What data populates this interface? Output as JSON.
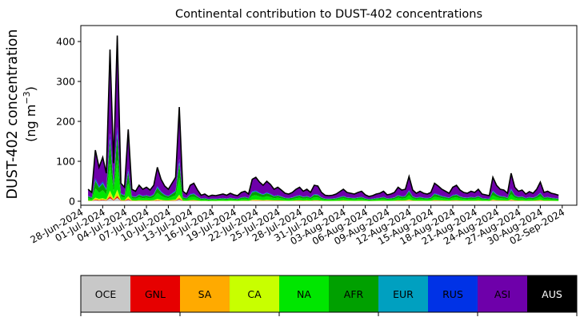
{
  "chart_data": {
    "type": "area",
    "title": "Continental contribution to DUST-402 concentrations",
    "ylabel_line1": "DUST-402 concentration",
    "ylabel_line2": "(ng m",
    "ylabel_unit_exp": "−3",
    "ylabel_close": ")",
    "xlabel": "",
    "ylim": [
      -10,
      440
    ],
    "xlim": [
      "2024-06-28",
      "2024-09-04"
    ],
    "y_ticks": [
      0,
      100,
      200,
      300,
      400
    ],
    "x_tick_labels": [
      "28-Jun-2024",
      "01-Jul-2024",
      "04-Jul-2024",
      "07-Jul-2024",
      "10-Jul-2024",
      "13-Jul-2024",
      "16-Jul-2024",
      "19-Jul-2024",
      "22-Jul-2024",
      "25-Jul-2024",
      "28-Jul-2024",
      "31-Jul-2024",
      "03-Aug-2024",
      "06-Aug-2024",
      "09-Aug-2024",
      "12-Aug-2024",
      "15-Aug-2024",
      "18-Aug-2024",
      "21-Aug-2024",
      "24-Aug-2024",
      "27-Aug-2024",
      "30-Aug-2024",
      "02-Sep-2024"
    ],
    "x_start_date": "2024-06-29",
    "x_step_hours": 12,
    "series_total": [
      30,
      22,
      128,
      85,
      110,
      70,
      380,
      95,
      415,
      45,
      35,
      180,
      30,
      25,
      40,
      30,
      35,
      28,
      40,
      85,
      55,
      38,
      30,
      45,
      60,
      236,
      25,
      18,
      40,
      45,
      28,
      15,
      18,
      12,
      15,
      14,
      16,
      18,
      15,
      20,
      16,
      14,
      22,
      25,
      18,
      55,
      60,
      48,
      40,
      50,
      42,
      30,
      35,
      28,
      20,
      18,
      22,
      30,
      35,
      25,
      30,
      22,
      40,
      38,
      22,
      15,
      14,
      15,
      18,
      24,
      30,
      22,
      20,
      18,
      22,
      25,
      16,
      12,
      14,
      18,
      20,
      25,
      16,
      18,
      22,
      35,
      28,
      30,
      62,
      28,
      20,
      25,
      20,
      18,
      22,
      45,
      38,
      30,
      25,
      20,
      35,
      40,
      28,
      22,
      20,
      25,
      22,
      30,
      18,
      16,
      14,
      60,
      40,
      30,
      28,
      20,
      70,
      35,
      25,
      28,
      18,
      24,
      20,
      30,
      48,
      22,
      25,
      20,
      18,
      15
    ],
    "legend": [
      {
        "name": "OCE",
        "color": "#c8c8c8",
        "text_color": "#000000"
      },
      {
        "name": "GNL",
        "color": "#e60000",
        "text_color": "#000000"
      },
      {
        "name": "SA",
        "color": "#ffaa00",
        "text_color": "#000000"
      },
      {
        "name": "CA",
        "color": "#c8ff00",
        "text_color": "#000000"
      },
      {
        "name": "NA",
        "color": "#00e600",
        "text_color": "#000000"
      },
      {
        "name": "AFR",
        "color": "#00a000",
        "text_color": "#000000"
      },
      {
        "name": "EUR",
        "color": "#00a0c0",
        "text_color": "#000000"
      },
      {
        "name": "RUS",
        "color": "#0032e6",
        "text_color": "#000000"
      },
      {
        "name": "ASI",
        "color": "#6e00aa",
        "text_color": "#000000"
      },
      {
        "name": "AUS",
        "color": "#000000",
        "text_color": "#ffffff"
      }
    ],
    "grid": false,
    "legend_placement": "bottom colorbar"
  }
}
